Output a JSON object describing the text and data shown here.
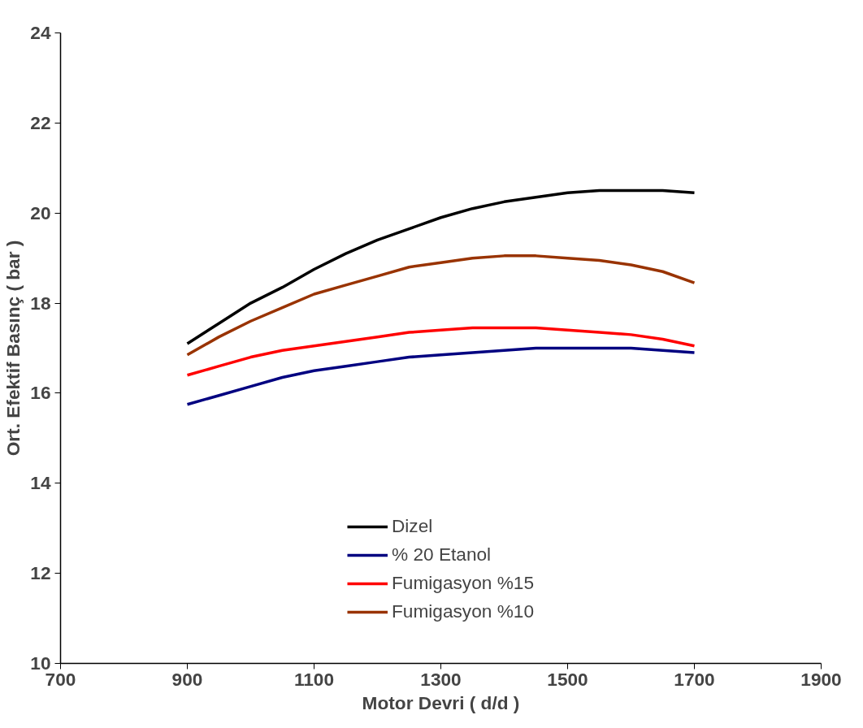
{
  "chart_data": {
    "type": "line",
    "xlabel": "Motor Devri ( d/d )",
    "ylabel": "Ort. Efektif Basınç ( bar )",
    "x": [
      900,
      950,
      1000,
      1050,
      1100,
      1150,
      1200,
      1250,
      1300,
      1350,
      1400,
      1450,
      1500,
      1550,
      1600,
      1650,
      1700
    ],
    "series": [
      {
        "name": "Dizel",
        "color": "#000000",
        "values": [
          17.1,
          17.55,
          18.0,
          18.35,
          18.75,
          19.1,
          19.4,
          19.65,
          19.9,
          20.1,
          20.25,
          20.35,
          20.45,
          20.5,
          20.5,
          20.5,
          20.45
        ]
      },
      {
        "name": "% 20 Etanol",
        "color": "#000080",
        "values": [
          15.75,
          15.95,
          16.15,
          16.35,
          16.5,
          16.6,
          16.7,
          16.8,
          16.85,
          16.9,
          16.95,
          17.0,
          17.0,
          17.0,
          17.0,
          16.95,
          16.9
        ]
      },
      {
        "name": "Fumigasyon %15",
        "color": "#ff0000",
        "values": [
          16.4,
          16.6,
          16.8,
          16.95,
          17.05,
          17.15,
          17.25,
          17.35,
          17.4,
          17.45,
          17.45,
          17.45,
          17.4,
          17.35,
          17.3,
          17.2,
          17.05
        ]
      },
      {
        "name": "Fumigasyon %10",
        "color": "#993300",
        "values": [
          16.85,
          17.25,
          17.6,
          17.9,
          18.2,
          18.4,
          18.6,
          18.8,
          18.9,
          19.0,
          19.05,
          19.05,
          19.0,
          18.95,
          18.85,
          18.7,
          18.45
        ]
      }
    ],
    "xlim": [
      700,
      1900
    ],
    "xticks": [
      700,
      900,
      1100,
      1300,
      1500,
      1700,
      1900
    ],
    "ylim": [
      10,
      24
    ],
    "yticks": [
      10,
      12,
      14,
      16,
      18,
      20,
      22,
      24
    ],
    "grid": false,
    "legend": "bottom",
    "marker": "none",
    "line_style": "solid"
  }
}
